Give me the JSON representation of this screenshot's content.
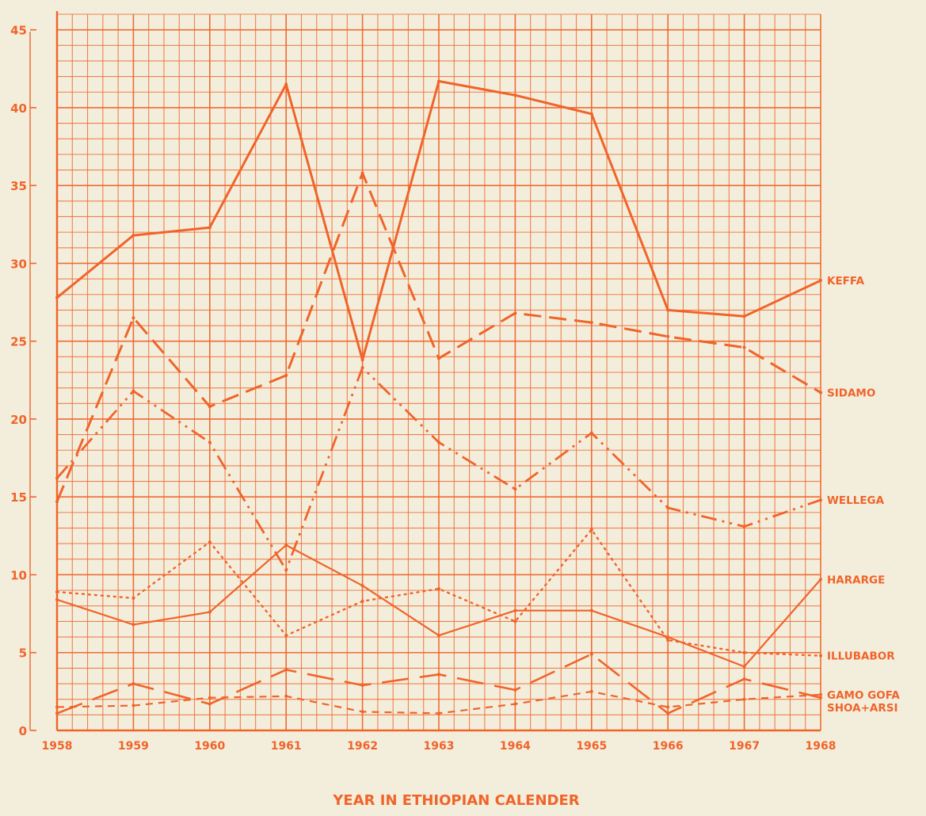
{
  "chart_data": {
    "type": "line",
    "title": "",
    "xlabel": "YEAR IN ETHIOPIAN CALENDER",
    "ylabel": "",
    "x": [
      "1958",
      "1959",
      "1960",
      "1961",
      "1962",
      "1963",
      "1964",
      "1965",
      "1966",
      "1967",
      "1968"
    ],
    "x_tick_labels": [
      "1958",
      "1959",
      "1960",
      "1961",
      "1962",
      "1963",
      "1964",
      "1965",
      "1966",
      "1967",
      "1968"
    ],
    "yticks": [
      0,
      5,
      10,
      15,
      20,
      25,
      30,
      35,
      40,
      45
    ],
    "ylim": [
      0,
      46
    ],
    "grid": true,
    "legend_placement": "right (labels at line ends)",
    "color": "#f0642a",
    "series": [
      {
        "name": "KEFFA",
        "style": "solid",
        "values": [
          27.8,
          31.8,
          32.3,
          41.5,
          23.8,
          41.7,
          40.8,
          39.6,
          27.0,
          26.6,
          28.9
        ]
      },
      {
        "name": "SIDAMO",
        "style": "dashed",
        "values": [
          14.7,
          26.5,
          20.8,
          22.8,
          35.8,
          23.9,
          26.8,
          26.2,
          25.3,
          24.6,
          21.7
        ]
      },
      {
        "name": "WELLEGA",
        "style": "dash-dot-dot",
        "values": [
          16.2,
          21.8,
          18.5,
          10.3,
          23.3,
          18.5,
          15.5,
          19.1,
          14.3,
          13.1,
          14.8
        ]
      },
      {
        "name": "HARARGE",
        "style": "solid-thin",
        "values": [
          8.4,
          6.8,
          7.6,
          11.9,
          9.3,
          6.1,
          7.7,
          7.7,
          6.0,
          4.1,
          9.7
        ]
      },
      {
        "name": "ILLUBABOR",
        "style": "dotted",
        "values": [
          8.9,
          8.5,
          12.1,
          6.1,
          8.3,
          9.1,
          7.0,
          12.9,
          5.8,
          5.0,
          4.8
        ]
      },
      {
        "name": "SHOA+ARSI",
        "style": "long-dash",
        "values": [
          1.1,
          3.0,
          1.7,
          3.9,
          2.9,
          3.6,
          2.6,
          4.9,
          1.1,
          3.3,
          2.1
        ]
      },
      {
        "name": "GAMO GOFA",
        "style": "short-dash",
        "values": [
          1.5,
          1.6,
          2.1,
          2.2,
          1.2,
          1.1,
          1.7,
          2.5,
          1.5,
          2.0,
          2.3
        ]
      }
    ]
  }
}
